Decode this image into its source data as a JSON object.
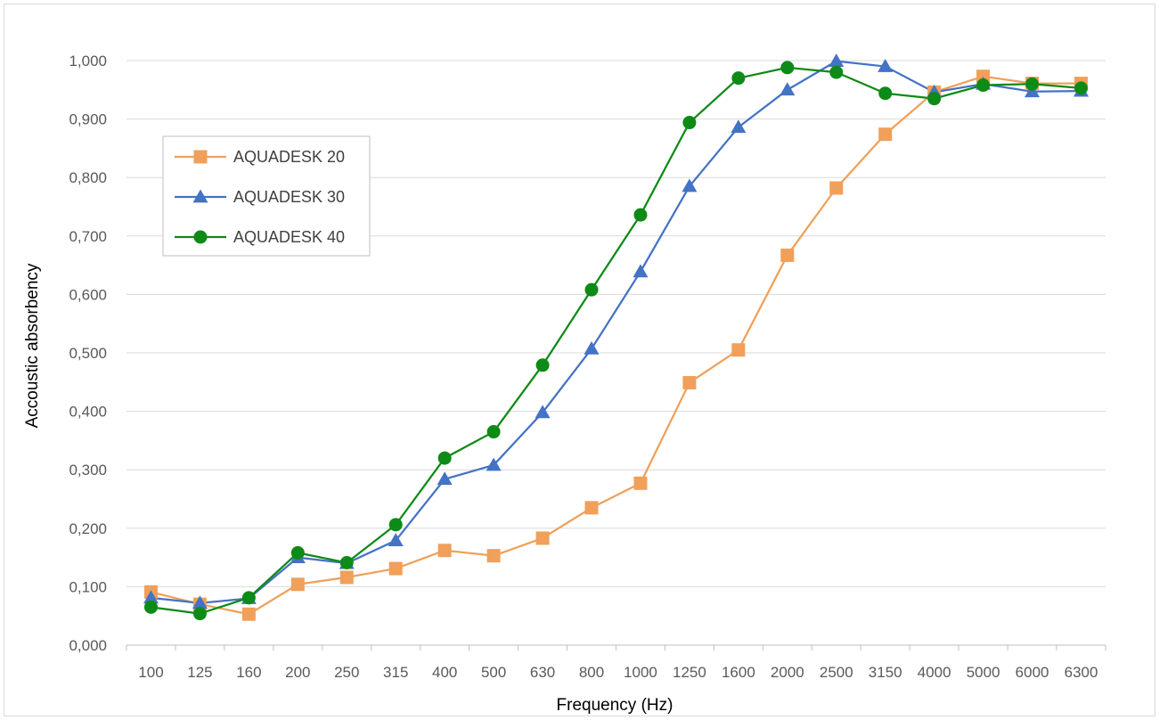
{
  "chart_data": {
    "type": "line",
    "title": "",
    "xlabel": "Frequency (Hz)",
    "ylabel": "Accoustic absorbency",
    "categories": [
      "100",
      "125",
      "160",
      "200",
      "250",
      "315",
      "400",
      "500",
      "630",
      "800",
      "1000",
      "1250",
      "1600",
      "2000",
      "2500",
      "3150",
      "4000",
      "5000",
      "6000",
      "6300"
    ],
    "ylim": [
      0,
      1.0
    ],
    "yticks": [
      0,
      0.1,
      0.2,
      0.3,
      0.4,
      0.5,
      0.6,
      0.7,
      0.8,
      0.9,
      1.0
    ],
    "ytick_labels": [
      "0,000",
      "0,100",
      "0,200",
      "0,300",
      "0,400",
      "0,500",
      "0,600",
      "0,700",
      "0,800",
      "0,900",
      "1,000"
    ],
    "grid": true,
    "legend_position": "left-upper",
    "series": [
      {
        "name": "AQUADESK 20",
        "color": "#F0A05A",
        "marker": "square",
        "values": [
          0.091,
          0.07,
          0.053,
          0.104,
          0.116,
          0.131,
          0.162,
          0.153,
          0.183,
          0.235,
          0.277,
          0.449,
          0.505,
          0.667,
          0.782,
          0.874,
          0.946,
          0.973,
          0.961,
          0.961
        ]
      },
      {
        "name": "AQUADESK 30",
        "color": "#4472C4",
        "marker": "triangle",
        "values": [
          0.081,
          0.072,
          0.08,
          0.15,
          0.14,
          0.179,
          0.284,
          0.308,
          0.398,
          0.507,
          0.639,
          0.785,
          0.886,
          0.95,
          0.999,
          0.99,
          0.946,
          0.96,
          0.947,
          0.948
        ]
      },
      {
        "name": "AQUADESK 40",
        "color": "#0E8A16",
        "marker": "circle",
        "values": [
          0.065,
          0.054,
          0.081,
          0.158,
          0.141,
          0.206,
          0.32,
          0.365,
          0.479,
          0.608,
          0.736,
          0.894,
          0.97,
          0.988,
          0.98,
          0.944,
          0.935,
          0.958,
          0.96,
          0.953
        ]
      }
    ]
  }
}
